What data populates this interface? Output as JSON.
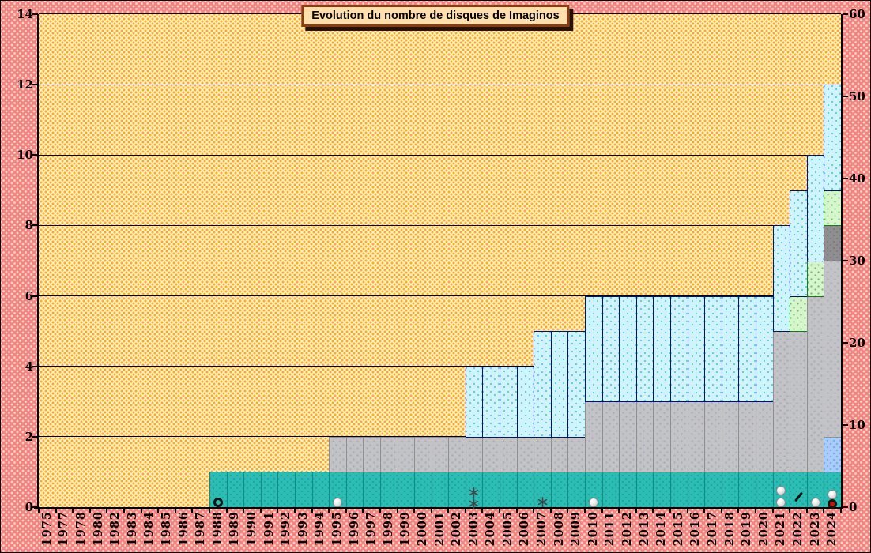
{
  "title": "Evolution du nombre de disques de Imaginos",
  "chart_data": {
    "type": "bar",
    "stacked": true,
    "title": "Evolution du nombre de disques de Imaginos",
    "legend": "none",
    "grid": "horizontal",
    "colors": {
      "canvas_background": "#F2837F",
      "plot_background": "#FFF5CD",
      "plot_dot_pattern": "#FFA928",
      "title_box_background": "#FFDFAC",
      "title_box_border": "#8C3A12"
    },
    "categories": [
      "1975",
      "1977",
      "1978",
      "1980",
      "1982",
      "1983",
      "1984",
      "1985",
      "1986",
      "1987",
      "1988",
      "1989",
      "1990",
      "1991",
      "1992",
      "1993",
      "1994",
      "1995",
      "1996",
      "1997",
      "1998",
      "1999",
      "2000",
      "2001",
      "2002",
      "2003",
      "2004",
      "2005",
      "2006",
      "2007",
      "2008",
      "2009",
      "2010",
      "2011",
      "2012",
      "2013",
      "2014",
      "2015",
      "2016",
      "2017",
      "2018",
      "2019",
      "2020",
      "2021",
      "2022",
      "2023",
      "2024"
    ],
    "series": [
      {
        "name": "series-teal",
        "color": "#2BBCB4",
        "border": "#128B84",
        "css": "s-teal",
        "values": [
          0,
          0,
          0,
          0,
          0,
          0,
          0,
          0,
          0,
          0,
          1,
          1,
          1,
          1,
          1,
          1,
          1,
          1,
          1,
          1,
          1,
          1,
          1,
          1,
          1,
          1,
          1,
          1,
          1,
          1,
          1,
          1,
          1,
          1,
          1,
          1,
          1,
          1,
          1,
          1,
          1,
          1,
          1,
          1,
          1,
          1,
          1
        ]
      },
      {
        "name": "series-cornflower",
        "color": "#A8CCFB",
        "border": "#7C9BC9",
        "css": "s-cornflower",
        "values": [
          0,
          0,
          0,
          0,
          0,
          0,
          0,
          0,
          0,
          0,
          0,
          0,
          0,
          0,
          0,
          0,
          0,
          0,
          0,
          0,
          0,
          0,
          0,
          0,
          0,
          0,
          0,
          0,
          0,
          0,
          0,
          0,
          0,
          0,
          0,
          0,
          0,
          0,
          0,
          0,
          0,
          0,
          0,
          0,
          0,
          0,
          1
        ]
      },
      {
        "name": "series-gray",
        "color": "#C3C3C6",
        "border": "#8F8F92",
        "css": "s-gray",
        "values": [
          0,
          0,
          0,
          0,
          0,
          0,
          0,
          0,
          0,
          0,
          0,
          0,
          0,
          0,
          0,
          0,
          0,
          1,
          1,
          1,
          1,
          1,
          1,
          1,
          1,
          1,
          1,
          1,
          1,
          1,
          1,
          1,
          2,
          2,
          2,
          2,
          2,
          2,
          2,
          2,
          2,
          2,
          2,
          4,
          4,
          5,
          5
        ]
      },
      {
        "name": "series-darkgray",
        "color": "#8E8E90",
        "border": "#5E5E60",
        "css": "s-darkgray",
        "values": [
          0,
          0,
          0,
          0,
          0,
          0,
          0,
          0,
          0,
          0,
          0,
          0,
          0,
          0,
          0,
          0,
          0,
          0,
          0,
          0,
          0,
          0,
          0,
          0,
          0,
          0,
          0,
          0,
          0,
          0,
          0,
          0,
          0,
          0,
          0,
          0,
          0,
          0,
          0,
          0,
          0,
          0,
          0,
          0,
          0,
          0,
          1
        ]
      },
      {
        "name": "series-green",
        "color": "#D7F5CC",
        "border": "#1B7A1B",
        "css": "s-green",
        "values": [
          0,
          0,
          0,
          0,
          0,
          0,
          0,
          0,
          0,
          0,
          0,
          0,
          0,
          0,
          0,
          0,
          0,
          0,
          0,
          0,
          0,
          0,
          0,
          0,
          0,
          0,
          0,
          0,
          0,
          0,
          0,
          0,
          0,
          0,
          0,
          0,
          0,
          0,
          0,
          0,
          0,
          0,
          0,
          0,
          1,
          1,
          1
        ]
      },
      {
        "name": "series-lightblue",
        "color": "#D0F4FB",
        "border": "#00127E",
        "css": "s-lightblue",
        "values": [
          0,
          0,
          0,
          0,
          0,
          0,
          0,
          0,
          0,
          0,
          0,
          0,
          0,
          0,
          0,
          0,
          0,
          0,
          0,
          0,
          0,
          0,
          0,
          0,
          0,
          2,
          2,
          2,
          2,
          3,
          3,
          3,
          3,
          3,
          3,
          3,
          3,
          3,
          3,
          3,
          3,
          3,
          3,
          3,
          3,
          3,
          3
        ]
      }
    ],
    "totals_by_year_note": "stacked totals: 1988-1994=1, 1995-2002=2, 2003-2006=4, 2007-2009=5, 2010-2020=6, 2021=8, 2022=9, 2023=10, 2024=12",
    "y_left": {
      "min": 0,
      "max": 14,
      "ticks": [
        0,
        2,
        4,
        6,
        8,
        10,
        12,
        14
      ]
    },
    "y_right": {
      "min": 0,
      "max": 60,
      "ticks": [
        0,
        10,
        20,
        30,
        40,
        50,
        60
      ]
    },
    "gridlines": [
      2,
      4,
      6,
      8,
      10,
      12
    ],
    "markers": [
      {
        "year": "1988",
        "value": 0.13,
        "shape": "donut-black"
      },
      {
        "year": "1995",
        "value": 0.13,
        "shape": "circle-white"
      },
      {
        "year": "2003",
        "value": 0.45,
        "shape": "asterisk"
      },
      {
        "year": "2003",
        "value": 0.15,
        "shape": "asterisk"
      },
      {
        "year": "2007",
        "value": 0.18,
        "shape": "asterisk"
      },
      {
        "year": "2010",
        "value": 0.13,
        "shape": "circle-white"
      },
      {
        "year": "2021",
        "value": 0.47,
        "shape": "circle-white"
      },
      {
        "year": "2021",
        "value": 0.13,
        "shape": "circle-white"
      },
      {
        "year": "2022",
        "value": 0.3,
        "shape": "stroke"
      },
      {
        "year": "2023",
        "value": 0.13,
        "shape": "circle-white"
      },
      {
        "year": "2024",
        "value": 0.36,
        "shape": "circle-white"
      },
      {
        "year": "2024",
        "value": 0.1,
        "shape": "donut-red"
      }
    ]
  }
}
